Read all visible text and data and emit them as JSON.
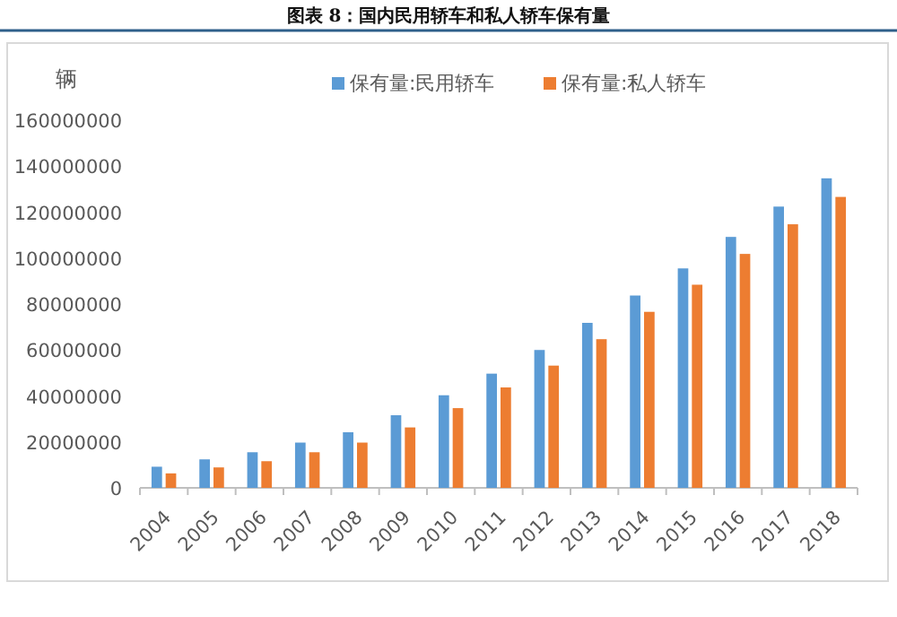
{
  "chart_data": {
    "type": "bar",
    "title": "图表 8：国内民用轿车和私人轿车保有量",
    "ylabel": "辆",
    "categories": [
      "2004",
      "2005",
      "2006",
      "2007",
      "2008",
      "2009",
      "2010",
      "2011",
      "2012",
      "2013",
      "2014",
      "2015",
      "2016",
      "2017",
      "2018"
    ],
    "series": [
      {
        "name": "保有量:民用轿车",
        "color": "#5b9bd5",
        "values": [
          9200000,
          12400000,
          15500000,
          19700000,
          24200000,
          31600000,
          40300000,
          49700000,
          60000000,
          71800000,
          83700000,
          95500000,
          109200000,
          122400000,
          134700000
        ]
      },
      {
        "name": "保有量:私人轿车",
        "color": "#ed7d31",
        "values": [
          6300000,
          8900000,
          11600000,
          15500000,
          19700000,
          26300000,
          34700000,
          43700000,
          53200000,
          64700000,
          76600000,
          88400000,
          101800000,
          114700000,
          126600000
        ]
      }
    ],
    "ylim": [
      0,
      160000000
    ],
    "yticks": [
      0,
      20000000,
      40000000,
      60000000,
      80000000,
      100000000,
      120000000,
      140000000,
      160000000
    ],
    "grid": false,
    "legend": "top"
  }
}
